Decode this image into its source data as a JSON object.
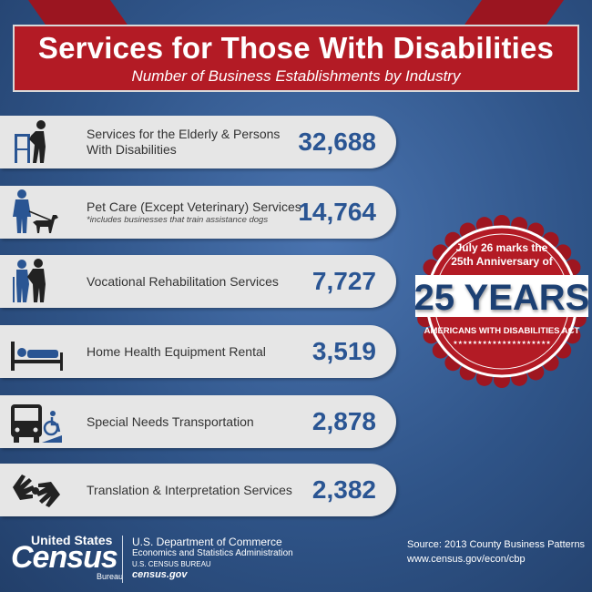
{
  "header": {
    "title": "Services for Those With Disabilities",
    "subtitle": "Number of Business Establishments by Industry"
  },
  "rows": [
    {
      "label": "Services for the Elderly & Persons With Disabilities",
      "value": "32,688",
      "icon": "walker-icon"
    },
    {
      "label": "Pet Care (Except Veterinary) Services",
      "note": "*includes businesses that train assistance dogs",
      "value": "14,764",
      "icon": "service-dog-icon"
    },
    {
      "label": "Vocational Rehabilitation Services",
      "value": "7,727",
      "icon": "assisted-walking-icon"
    },
    {
      "label": "Home Health Equipment Rental",
      "value": "3,519",
      "icon": "hospital-bed-icon"
    },
    {
      "label": "Special Needs Transportation",
      "value": "2,878",
      "icon": "accessible-bus-icon"
    },
    {
      "label": "Translation & Interpretation Services",
      "value": "2,382",
      "icon": "sign-language-icon"
    }
  ],
  "seal": {
    "top_line1": "July 26 marks the",
    "top_line2": "25th Anniversary of",
    "big": "25 YEARS",
    "bottom": "AMERICANS WITH DISABILITIES ACT",
    "stars": "★★★★★★★★★★★★★★★★★★★★"
  },
  "footer": {
    "logo_top": "United States",
    "logo_main": "Census",
    "logo_bottom": "Bureau",
    "dept_line1": "U.S. Department of Commerce",
    "dept_line2": "Economics and Statistics Administration",
    "dept_line3": "U.S. CENSUS BUREAU",
    "dept_line4": "census.gov",
    "source_line1": "Source: 2013 County Business Patterns",
    "source_line2": "www.census.gov/econ/cbp"
  },
  "colors": {
    "banner_red": "#b31b25",
    "value_blue": "#2a5593",
    "icon_blue": "#2a5593",
    "icon_dark": "#222222"
  }
}
